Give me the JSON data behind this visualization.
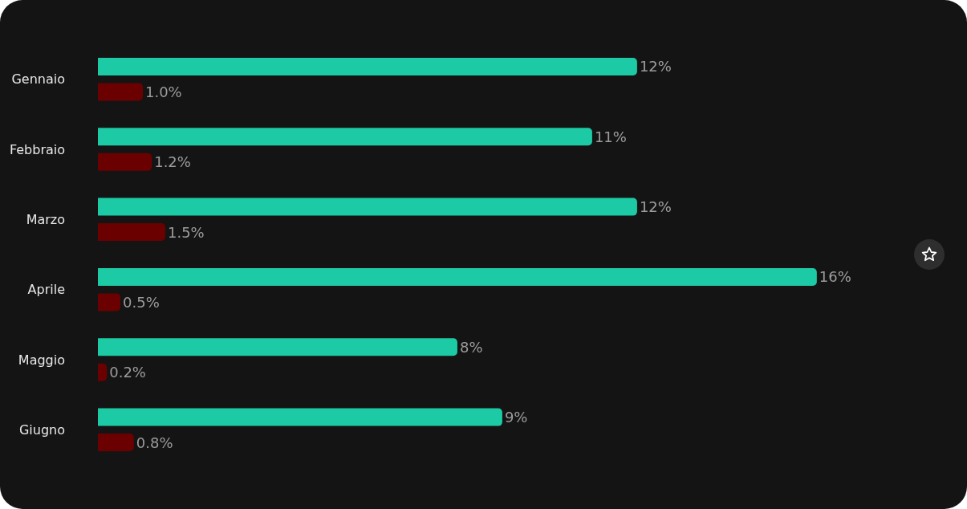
{
  "chart_data": {
    "type": "bar",
    "orientation": "horizontal",
    "categories": [
      "Gennaio",
      "Febbraio",
      "Marzo",
      "Aprile",
      "Maggio",
      "Giugno"
    ],
    "series": [
      {
        "color": "#1ccba5",
        "values": [
          12,
          11,
          12,
          16,
          8,
          9
        ],
        "value_labels": [
          "12%",
          "11%",
          "12%",
          "16%",
          "8%",
          "9%"
        ]
      },
      {
        "color": "#6b0000",
        "values": [
          1.0,
          1.2,
          1.5,
          0.5,
          0.2,
          0.8
        ],
        "value_labels": [
          "1.0%",
          "1.2%",
          "1.5%",
          "0.5%",
          "0.2%",
          "0.8%"
        ]
      }
    ],
    "stacked": false
  }
}
